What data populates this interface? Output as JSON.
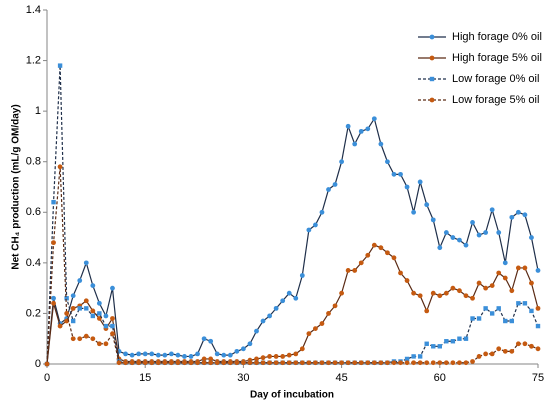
{
  "chart_data": {
    "type": "line",
    "y_label": "Net CH₄ production (mL/g OM/day)",
    "x_label": "Day of incubation",
    "x": [
      0,
      1,
      2,
      3,
      4,
      5,
      6,
      7,
      8,
      9,
      10,
      11,
      12,
      13,
      14,
      15,
      16,
      17,
      18,
      19,
      20,
      21,
      22,
      23,
      24,
      25,
      26,
      27,
      28,
      29,
      30,
      31,
      32,
      33,
      34,
      35,
      36,
      37,
      38,
      39,
      40,
      41,
      42,
      43,
      44,
      45,
      46,
      47,
      48,
      49,
      50,
      51,
      52,
      53,
      54,
      55,
      56,
      57,
      58,
      59,
      60,
      61,
      62,
      63,
      64,
      65,
      66,
      67,
      68,
      69,
      70,
      71,
      72,
      73,
      74,
      75
    ],
    "xlim": [
      0,
      75
    ],
    "xticks": [
      0,
      15,
      30,
      45,
      60,
      75
    ],
    "ylim": [
      0,
      1.4
    ],
    "yticks": [
      0,
      0.2,
      0.4,
      0.6,
      0.8,
      1,
      1.2,
      1.4
    ],
    "grid": false,
    "legend": "top-right",
    "series": [
      {
        "name": "High forage 0% oil",
        "color": "#1f2f4a",
        "marker_color": "#3b8fd9",
        "marker": "circle",
        "dashed": false,
        "values": [
          0,
          0.26,
          0.16,
          0.18,
          0.27,
          0.33,
          0.4,
          0.31,
          0.24,
          0.19,
          0.3,
          0.05,
          0.04,
          0.035,
          0.04,
          0.04,
          0.04,
          0.035,
          0.035,
          0.04,
          0.035,
          0.03,
          0.03,
          0.04,
          0.1,
          0.09,
          0.04,
          0.035,
          0.035,
          0.05,
          0.06,
          0.08,
          0.13,
          0.17,
          0.19,
          0.22,
          0.25,
          0.28,
          0.26,
          0.35,
          0.53,
          0.55,
          0.6,
          0.69,
          0.71,
          0.8,
          0.94,
          0.87,
          0.92,
          0.93,
          0.97,
          0.87,
          0.8,
          0.75,
          0.75,
          0.7,
          0.6,
          0.72,
          0.63,
          0.57,
          0.46,
          0.52,
          0.5,
          0.49,
          0.47,
          0.56,
          0.51,
          0.52,
          0.61,
          0.52,
          0.4,
          0.58,
          0.6,
          0.59,
          0.5,
          0.37
        ]
      },
      {
        "name": "High forage 5% oil",
        "color": "#5a2a14",
        "marker_color": "#c55a11",
        "marker": "circle",
        "dashed": false,
        "values": [
          0,
          0.24,
          0.15,
          0.17,
          0.22,
          0.23,
          0.25,
          0.21,
          0.18,
          0.14,
          0.18,
          0.02,
          0.01,
          0.01,
          0.01,
          0.01,
          0.01,
          0.01,
          0.01,
          0.01,
          0.01,
          0.01,
          0.01,
          0.01,
          0.02,
          0.02,
          0.01,
          0.01,
          0.01,
          0.01,
          0.01,
          0.015,
          0.02,
          0.025,
          0.03,
          0.03,
          0.03,
          0.035,
          0.04,
          0.06,
          0.12,
          0.14,
          0.16,
          0.2,
          0.23,
          0.28,
          0.37,
          0.37,
          0.4,
          0.43,
          0.47,
          0.46,
          0.44,
          0.42,
          0.36,
          0.33,
          0.28,
          0.27,
          0.21,
          0.28,
          0.27,
          0.28,
          0.3,
          0.29,
          0.27,
          0.26,
          0.32,
          0.3,
          0.31,
          0.36,
          0.34,
          0.29,
          0.38,
          0.38,
          0.32,
          0.22
        ]
      },
      {
        "name": "Low forage 0% oil",
        "color": "#1f2f4a",
        "marker_color": "#3b8fd9",
        "marker": "square",
        "dashed": true,
        "values": [
          0,
          0.64,
          1.18,
          0.26,
          0.17,
          0.22,
          0.22,
          0.19,
          0.2,
          0.15,
          0.15,
          0.01,
          0.005,
          0.005,
          0.005,
          0.005,
          0.005,
          0.005,
          0.005,
          0.005,
          0.005,
          0.005,
          0.005,
          0.005,
          0.005,
          0.005,
          0.005,
          0.005,
          0.005,
          0.005,
          0.005,
          0.005,
          0.005,
          0.005,
          0.005,
          0.005,
          0.005,
          0.005,
          0.005,
          0.005,
          0.005,
          0.005,
          0.005,
          0.005,
          0.005,
          0.005,
          0.005,
          0.005,
          0.005,
          0.005,
          0.005,
          0.005,
          0.005,
          0.01,
          0.01,
          0.02,
          0.03,
          0.03,
          0.08,
          0.07,
          0.07,
          0.09,
          0.09,
          0.1,
          0.1,
          0.18,
          0.18,
          0.22,
          0.2,
          0.22,
          0.17,
          0.17,
          0.24,
          0.24,
          0.21,
          0.15
        ]
      },
      {
        "name": "Low forage 5% oil",
        "color": "#5a2a14",
        "marker_color": "#c55a11",
        "marker": "circle",
        "dashed": true,
        "values": [
          0,
          0.48,
          0.78,
          0.2,
          0.1,
          0.1,
          0.11,
          0.1,
          0.08,
          0.08,
          0.12,
          0.005,
          0.005,
          0.005,
          0.005,
          0.005,
          0.005,
          0.005,
          0.005,
          0.005,
          0.005,
          0.005,
          0.005,
          0.005,
          0.005,
          0.005,
          0.005,
          0.005,
          0.005,
          0.005,
          0.005,
          0.005,
          0.005,
          0.005,
          0.005,
          0.005,
          0.005,
          0.005,
          0.005,
          0.005,
          0.005,
          0.005,
          0.005,
          0.005,
          0.005,
          0.005,
          0.005,
          0.005,
          0.005,
          0.005,
          0.005,
          0.005,
          0.005,
          0.005,
          0.005,
          0.005,
          0.005,
          0.005,
          0.005,
          0.005,
          0.005,
          0.005,
          0.005,
          0.005,
          0.005,
          0.01,
          0.03,
          0.04,
          0.04,
          0.06,
          0.05,
          0.05,
          0.08,
          0.08,
          0.07,
          0.06
        ]
      }
    ]
  }
}
